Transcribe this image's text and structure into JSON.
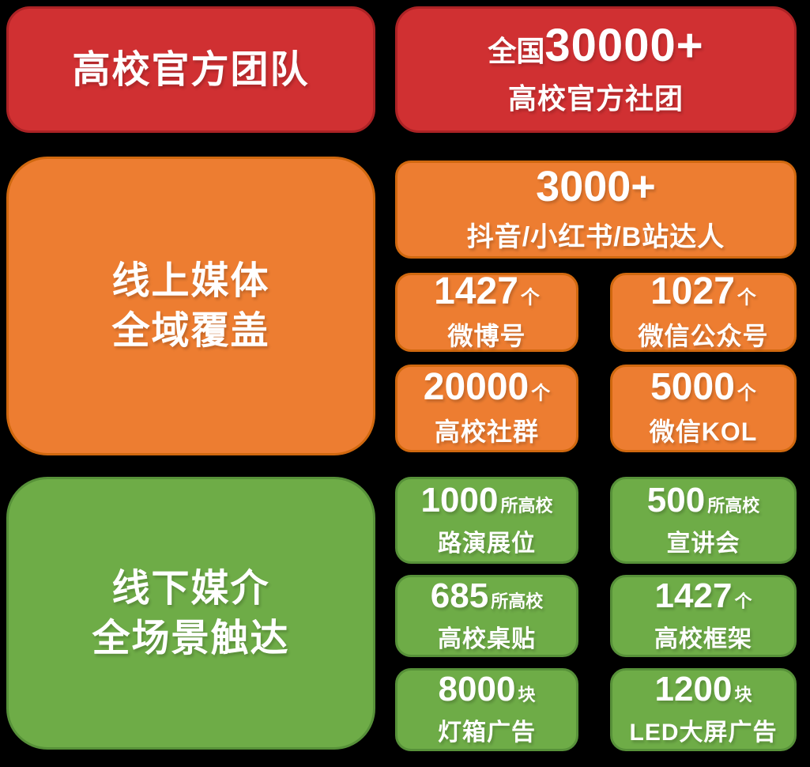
{
  "palette": {
    "background": "#000000",
    "red": "#D03032",
    "red_border": "#AC2325",
    "orange": "#ED7D31",
    "orange_border": "#D0680F",
    "green": "#6EAC47",
    "green_border": "#579139",
    "text": "#FFFFFF"
  },
  "team": {
    "title": "高校官方团队",
    "stat_prefix": "全国",
    "stat_number": "30000+",
    "stat_label": "高校官方社团"
  },
  "online": {
    "title_line1": "线上媒体",
    "title_line2": "全域覆盖",
    "feature": {
      "number": "3000+",
      "label": "抖音/小红书/B站达人"
    },
    "stats": [
      {
        "number": "1427",
        "unit": "个",
        "label": "微博号"
      },
      {
        "number": "1027",
        "unit": "个",
        "label": "微信公众号"
      },
      {
        "number": "20000",
        "unit": "个",
        "label": "高校社群"
      },
      {
        "number": "5000",
        "unit": "个",
        "label": "微信KOL"
      }
    ]
  },
  "offline": {
    "title_line1": "线下媒介",
    "title_line2": "全场景触达",
    "stats": [
      {
        "number": "1000",
        "unit": "所高校",
        "label": "路演展位"
      },
      {
        "number": "500",
        "unit": "所高校",
        "label": "宣讲会"
      },
      {
        "number": "685",
        "unit": "所高校",
        "label": "高校桌贴"
      },
      {
        "number": "1427",
        "unit": "个",
        "label": "高校框架"
      },
      {
        "number": "8000",
        "unit": "块",
        "label": "灯箱广告"
      },
      {
        "number": "1200",
        "unit": "块",
        "label": "LED大屏广告"
      }
    ]
  }
}
